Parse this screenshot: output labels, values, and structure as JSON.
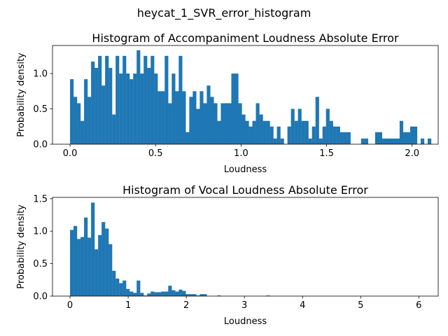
{
  "suptitle": "heycat_1_SVR_error_histogram",
  "chart_data": [
    {
      "type": "bar",
      "title": "Histogram of Accompaniment Loudness Absolute Error",
      "xlabel": "Loudness",
      "ylabel": "Probability density",
      "xlim": [
        -0.1025,
        2.1525
      ],
      "ylim": [
        0,
        1.397
      ],
      "xticks": [
        0.0,
        0.5,
        1.0,
        1.5,
        2.0
      ],
      "xtick_labels": [
        "0.0",
        "0.5",
        "1.0",
        "1.5",
        "2.0"
      ],
      "yticks": [
        0.0,
        0.5,
        1.0
      ],
      "ytick_labels": [
        "0.0",
        "0.5",
        "1.0"
      ],
      "bin_start": 0.0,
      "bin_width": 0.0205,
      "values": [
        0.92,
        0.67,
        0.58,
        0.33,
        0.92,
        0.67,
        1.17,
        1.08,
        1.25,
        0.83,
        1.25,
        1.08,
        0.42,
        1.25,
        1.0,
        1.25,
        1.0,
        0.92,
        1.0,
        1.33,
        1.0,
        1.25,
        1.08,
        1.25,
        1.0,
        0.75,
        0.75,
        1.25,
        0.58,
        1.0,
        0.75,
        1.25,
        0.75,
        0.17,
        0.67,
        0.75,
        0.5,
        0.75,
        0.58,
        0.83,
        0.67,
        0.58,
        0.33,
        0.58,
        0.58,
        0.58,
        1.0,
        1.0,
        0.58,
        0.42,
        0.33,
        0.25,
        0.33,
        0.58,
        0.42,
        0.33,
        0.33,
        0.25,
        0.08,
        0.25,
        0.08,
        0.0,
        0.25,
        0.5,
        0.33,
        0.5,
        0.33,
        0.33,
        0.08,
        0.25,
        0.67,
        0.08,
        0.25,
        0.5,
        0.33,
        0.25,
        0.25,
        0.17,
        0.17,
        0.17,
        0.0,
        0.0,
        0.0,
        0.08,
        0.08,
        0.0,
        0.0,
        0.17,
        0.17,
        0.08,
        0.08,
        0.08,
        0.08,
        0.08,
        0.33,
        0.17,
        0.17,
        0.25,
        0.25,
        0.0,
        0.08,
        0.0,
        0.08,
        0.0,
        0.0,
        0.0,
        0.0,
        0.0,
        0.0,
        0.0,
        0.08,
        0.0,
        0.0,
        0.0,
        0.0,
        0.0,
        0.0,
        0.0,
        0.0,
        0.0,
        0.0,
        0.0,
        0.0,
        0.0,
        0.0,
        0.0,
        0.0,
        0.0,
        0.0,
        0.0,
        0.0,
        0.0,
        0.0,
        0.0,
        0.0,
        0.0,
        0.0,
        0.0,
        0.0,
        0.0,
        0.0,
        0.0,
        0.0,
        0.0,
        0.0,
        0.0,
        0.0,
        0.0,
        0.0,
        0.0,
        0.0,
        0.0,
        0.0,
        0.0,
        0.0,
        0.0,
        0.0,
        0.0,
        0.0,
        0.0,
        0.0,
        0.0,
        0.0,
        0.0,
        0.0,
        0.0,
        0.0,
        0.0,
        0.0,
        0.0,
        0.0,
        0.0,
        0.0,
        0.0,
        0.0,
        0.0,
        0.0,
        0.0,
        0.0,
        0.0,
        0.0,
        0.0,
        0.0,
        0.0,
        0.0,
        0.0,
        0.0,
        0.0,
        0.0,
        0.0,
        0.0,
        0.0,
        0.0,
        0.0,
        0.0,
        0.0,
        0.0,
        0.0,
        0.0,
        0.0,
        0.0,
        0.0,
        0.0,
        0.0,
        0.0,
        0.0,
        0.0,
        0.0,
        0.0,
        0.0,
        0.0,
        0.0,
        0.0,
        0.0,
        0.0,
        0.0,
        0.0,
        0.0,
        0.0,
        0.0,
        0.0,
        0.0,
        0.0,
        0.0,
        0.0,
        0.0,
        0.0,
        0.0,
        0.0,
        0.0,
        0.0,
        0.0,
        0.0,
        0.0,
        0.0,
        0.0,
        0.0,
        0.0,
        0.0,
        0.0,
        0.0,
        0.0,
        0.0,
        0.0,
        0.0,
        0.0,
        0.0,
        0.0,
        0.0,
        0.0,
        0.0,
        0.0,
        0.0,
        0.0,
        0.0,
        0.0,
        0.0,
        0.0,
        0.0,
        0.0,
        0.0,
        0.0,
        0.0,
        0.0,
        0.0,
        0.0,
        0.0,
        0.0,
        0.0,
        0.0,
        0.0,
        0.0,
        0.0,
        0.0,
        0.0,
        0.0,
        0.0,
        0.0,
        0.0,
        0.0,
        0.0,
        0.0,
        0.0
      ]
    },
    {
      "type": "bar",
      "title": "Histogram of Vocal Loudness Absolute Error",
      "xlabel": "Loudness",
      "ylabel": "Probability density",
      "xlim": [
        -0.3016,
        6.3336
      ],
      "ylim": [
        0,
        1.52
      ],
      "xticks": [
        0,
        1,
        2,
        3,
        4,
        5,
        6
      ],
      "xtick_labels": [
        "0",
        "1",
        "2",
        "3",
        "4",
        "5",
        "6"
      ],
      "yticks": [
        0.0,
        0.5,
        1.0,
        1.5
      ],
      "ytick_labels": [
        "0.0",
        "0.5",
        "1.0",
        "1.5"
      ],
      "bin_start": 0.0,
      "bin_width": 0.06032,
      "values": [
        1.02,
        1.08,
        0.88,
        0.91,
        1.21,
        0.9,
        1.44,
        0.72,
        0.94,
        1.14,
        1.04,
        0.8,
        0.39,
        0.27,
        0.2,
        0.24,
        0.11,
        0.07,
        0.05,
        0.24,
        0.05,
        0.01,
        0.04,
        0.07,
        0.06,
        0.06,
        0.07,
        0.07,
        0.16,
        0.09,
        0.07,
        0.1,
        0.08,
        0.03,
        0.03,
        0.03,
        0.01,
        0.03,
        0.03,
        0.0,
        0.0,
        0.0,
        0.01,
        0.0,
        0.0,
        0.0,
        0.0,
        0.0,
        0.0,
        0.0,
        0.0,
        0.0,
        0.0,
        0.0,
        0.0,
        0.0,
        0.01,
        0.0,
        0.0,
        0.0,
        0.0,
        0.0,
        0.0,
        0.0,
        0.0,
        0.0,
        0.0,
        0.0,
        0.0,
        0.0,
        0.0,
        0.0,
        0.0,
        0.0,
        0.0,
        0.0,
        0.0,
        0.0,
        0.0,
        0.0,
        0.0,
        0.0,
        0.0,
        0.0,
        0.0,
        0.0,
        0.0,
        0.0,
        0.0,
        0.0,
        0.0,
        0.0,
        0.0,
        0.0,
        0.0,
        0.0,
        0.0,
        0.0,
        0.0,
        0.0
      ]
    }
  ]
}
